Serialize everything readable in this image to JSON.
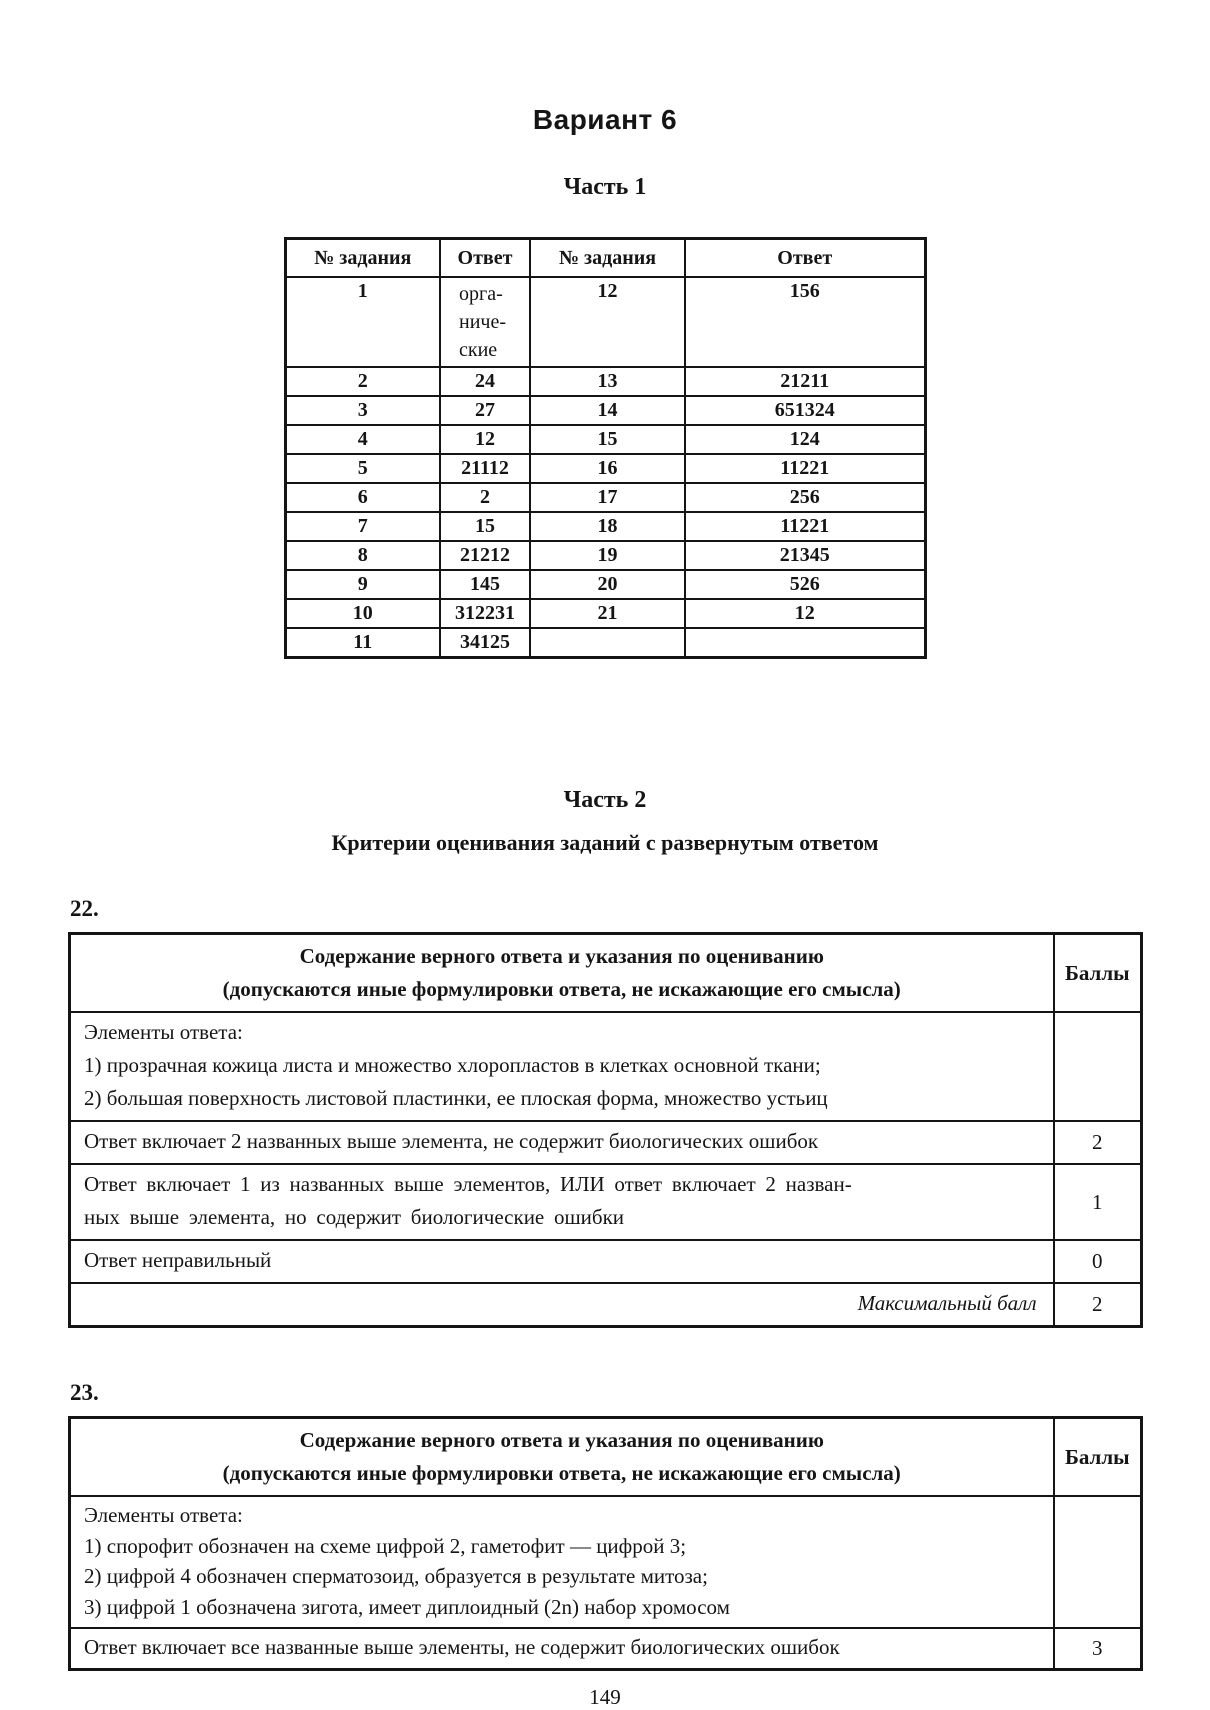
{
  "page": {
    "variant_title": "Вариант 6",
    "part1_heading": "Часть 1",
    "part2_heading": "Часть 2",
    "criteria_title": "Критерии оценивания заданий с развернутым ответом",
    "page_number": "149"
  },
  "answers_table": {
    "headers": [
      "№ задания",
      "Ответ",
      "№ задания",
      "Ответ"
    ],
    "rows": [
      [
        "1",
        "орга-\nниче-\nские",
        "12",
        "156"
      ],
      [
        "2",
        "24",
        "13",
        "21211"
      ],
      [
        "3",
        "27",
        "14",
        "651324"
      ],
      [
        "4",
        "12",
        "15",
        "124"
      ],
      [
        "5",
        "21112",
        "16",
        "11221"
      ],
      [
        "6",
        "2",
        "17",
        "256"
      ],
      [
        "7",
        "15",
        "18",
        "11221"
      ],
      [
        "8",
        "21212",
        "19",
        "21345"
      ],
      [
        "9",
        "145",
        "20",
        "526"
      ],
      [
        "10",
        "312231",
        "21",
        "12"
      ],
      [
        "11",
        "34125",
        "",
        ""
      ]
    ]
  },
  "task22": {
    "label": "22.",
    "header_content": "Содержание верного ответа и указания по оцениванию\n(допускаются иные формулировки ответа, не искажающие его смысла)",
    "header_points": "Баллы",
    "rows": [
      {
        "text": "Элементы ответа:\n1) прозрачная кожица листа и множество хлоропластов в клетках основной ткани;\n2) большая поверхность листовой пластинки, ее плоская форма, множество устьиц",
        "points": ""
      },
      {
        "text": "Ответ включает 2 названных выше элемента, не содержит биологических ошибок",
        "points": "2"
      },
      {
        "text": "Ответ включает 1 из названных выше элементов, ИЛИ ответ включает 2 назван-\nных выше элемента, но содержит биологические ошибки",
        "points": "1"
      },
      {
        "text": "Ответ неправильный",
        "points": "0"
      },
      {
        "text": "Максимальный балл",
        "points": "2"
      }
    ]
  },
  "task23": {
    "label": "23.",
    "header_content": "Содержание верного ответа и указания по оцениванию\n(допускаются иные формулировки ответа, не искажающие его смысла)",
    "header_points": "Баллы",
    "rows": [
      {
        "text": "Элементы ответа:\n1) спорофит обозначен на схеме цифрой 2, гаметофит — цифрой 3;\n2) цифрой 4 обозначен сперматозоид, образуется в результате митоза;\n3) цифрой 1 обозначена зигота, имеет диплоидный (2n) набор хромосом",
        "points": ""
      },
      {
        "text": "Ответ включает все названные выше элементы, не содержит биологических ошибок",
        "points": "3"
      }
    ]
  }
}
